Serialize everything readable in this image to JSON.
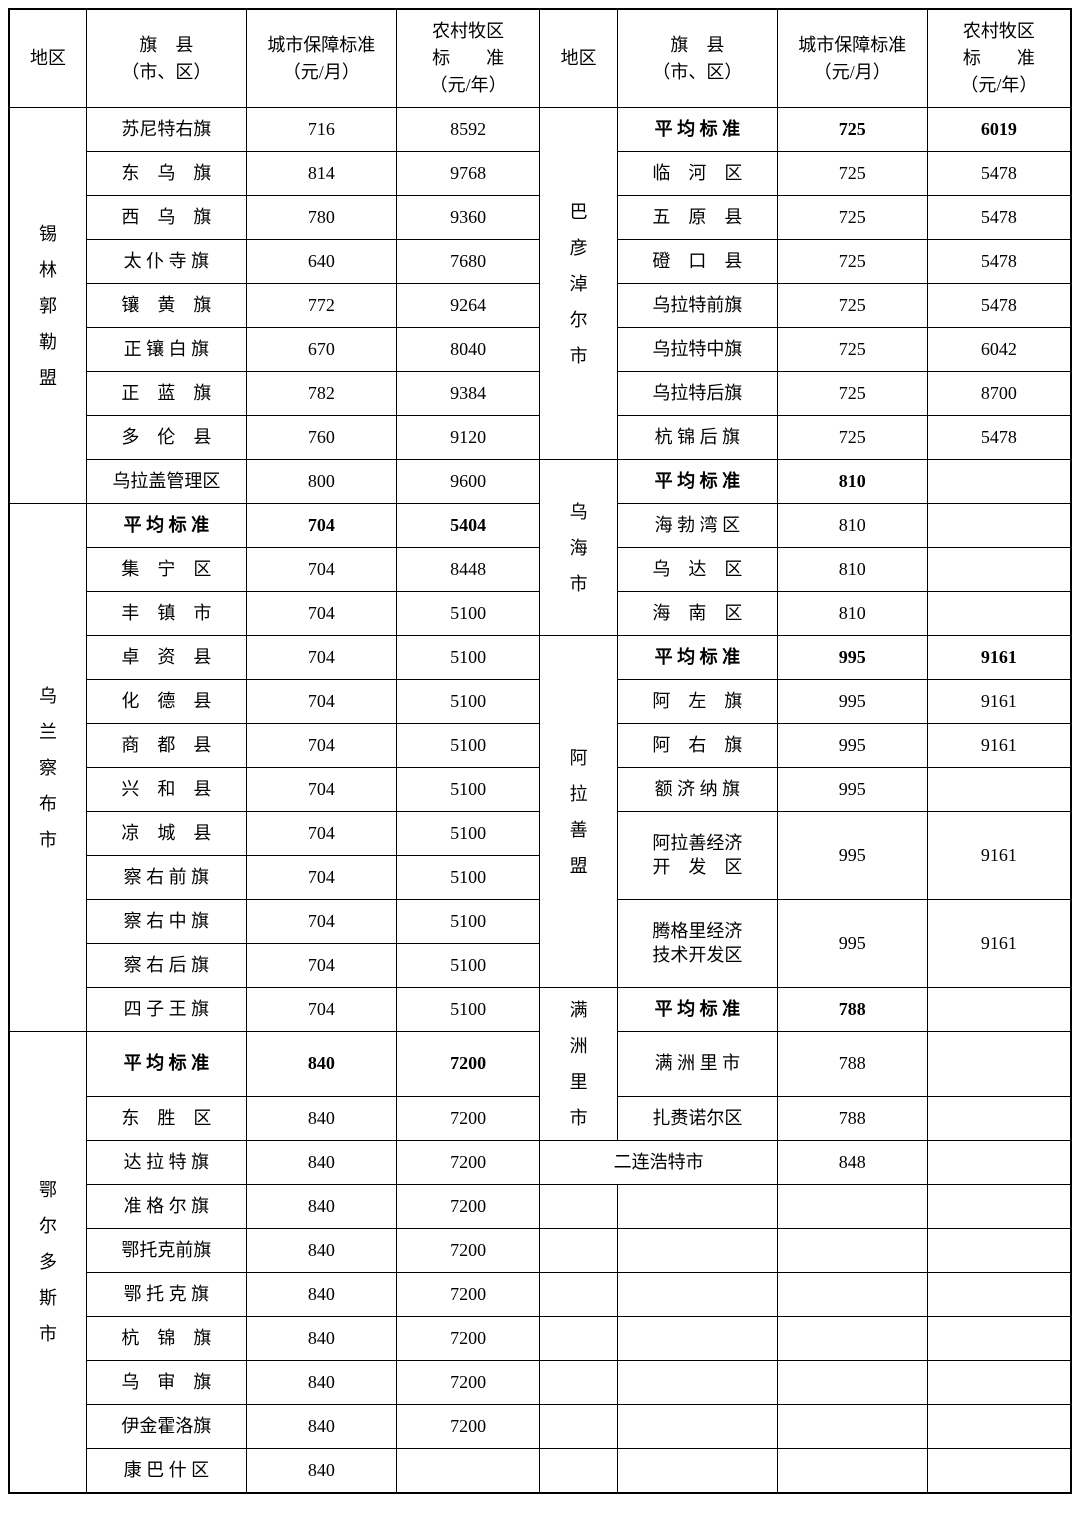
{
  "table": {
    "type": "table",
    "background_color": "#ffffff",
    "border_color": "#000000",
    "text_color": "#000000",
    "font_size_pt": 14,
    "font_family": "SimSun",
    "headers": {
      "region": "地区",
      "county_line1": "旗　县",
      "county_line2": "（市、区）",
      "urban_line1": "城市保障标准",
      "urban_line2": "（元/月）",
      "rural_line1": "农村牧区",
      "rural_line2": "标　　准",
      "rural_line3": "（元/年）"
    },
    "rows": [
      {
        "lregion": "锡<br>林<br>郭<br>勒<br>盟",
        "lrs": 9,
        "lcounty": "苏尼特右旗",
        "lurban": "716",
        "lrural": "8592",
        "rregion": "巴<br>彦<br>淖<br>尔<br>市",
        "rrs": 8,
        "rcounty": "平 均 标 准",
        "rbold": true,
        "rurban": "725",
        "rrural": "6019"
      },
      {
        "lcounty": "东　乌　旗",
        "lurban": "814",
        "lrural": "9768",
        "rcounty": "临　河　区",
        "rurban": "725",
        "rrural": "5478"
      },
      {
        "lcounty": "西　乌　旗",
        "lurban": "780",
        "lrural": "9360",
        "rcounty": "五　原　县",
        "rurban": "725",
        "rrural": "5478"
      },
      {
        "lcounty": "太 仆 寺 旗",
        "lurban": "640",
        "lrural": "7680",
        "rcounty": "磴　口　县",
        "rurban": "725",
        "rrural": "5478"
      },
      {
        "lcounty": "镶　黄　旗",
        "lurban": "772",
        "lrural": "9264",
        "rcounty": "乌拉特前旗",
        "rurban": "725",
        "rrural": "5478"
      },
      {
        "lcounty": "正 镶 白 旗",
        "lurban": "670",
        "lrural": "8040",
        "rcounty": "乌拉特中旗",
        "rurban": "725",
        "rrural": "6042"
      },
      {
        "lcounty": "正　蓝　旗",
        "lurban": "782",
        "lrural": "9384",
        "rcounty": "乌拉特后旗",
        "rurban": "725",
        "rrural": "8700"
      },
      {
        "lcounty": "多　伦　县",
        "lurban": "760",
        "lrural": "9120",
        "rcounty": "杭 锦 后 旗",
        "rurban": "725",
        "rrural": "5478"
      },
      {
        "lcounty": "乌拉盖管理区",
        "lurban": "800",
        "lrural": "9600",
        "rregion": "乌<br>海<br>市",
        "rrs": 4,
        "rcounty": "平 均 标 准",
        "rbold": true,
        "rurban": "810",
        "rrural": ""
      },
      {
        "lregion": "乌<br>兰<br>察<br>布<br>市",
        "lrs": 12,
        "lcounty": "平 均 标 准",
        "lbold": true,
        "lurban": "704",
        "lrural": "5404",
        "rcounty": "海 勃 湾 区",
        "rurban": "810",
        "rrural": ""
      },
      {
        "lcounty": "集　宁　区",
        "lurban": "704",
        "lrural": "8448",
        "rcounty": "乌　达　区",
        "rurban": "810",
        "rrural": ""
      },
      {
        "lcounty": "丰　镇　市",
        "lurban": "704",
        "lrural": "5100",
        "rcounty": "海　南　区",
        "rurban": "810",
        "rrural": ""
      },
      {
        "lcounty": "卓　资　县",
        "lurban": "704",
        "lrural": "5100",
        "rregion": "阿<br>拉<br>善<br>盟",
        "rrs": 8,
        "rcounty": "平 均 标 准",
        "rbold": true,
        "rurban": "995",
        "rrural": "9161"
      },
      {
        "lcounty": "化　德　县",
        "lurban": "704",
        "lrural": "5100",
        "rcounty": "阿　左　旗",
        "rurban": "995",
        "rrural": "9161"
      },
      {
        "lcounty": "商　都　县",
        "lurban": "704",
        "lrural": "5100",
        "rcounty": "阿　右　旗",
        "rurban": "995",
        "rrural": "9161"
      },
      {
        "lcounty": "兴　和　县",
        "lurban": "704",
        "lrural": "5100",
        "rcounty": "额 济 纳 旗",
        "rurban": "995",
        "rrural": ""
      },
      {
        "lcounty": "凉　城　县",
        "lurban": "704",
        "lrural": "5100",
        "rcounty": "阿拉善经济<br>开　发　区",
        "rurban": "995",
        "rrural": "9161",
        "rrs2": 2
      },
      {
        "lcounty": "察 右 前 旗",
        "lurban": "704",
        "lrural": "5100",
        "skipRight": true
      },
      {
        "lcounty": "察 右 中 旗",
        "lurban": "704",
        "lrural": "5100",
        "rcounty": "腾格里经济<br>技术开发区",
        "rurban": "995",
        "rrural": "9161",
        "rrs2": 2
      },
      {
        "lcounty": "察 右 后 旗",
        "lurban": "704",
        "lrural": "5100",
        "skipRight": true
      },
      {
        "lcounty": "四 子 王 旗",
        "lurban": "704",
        "lrural": "5100",
        "rregion": "满<br>洲<br>里<br>市",
        "rrs": 3,
        "rcounty": "平 均 标 准",
        "rbold": true,
        "rurban": "788",
        "rrural": ""
      },
      {
        "lregion": "鄂<br>尔<br>多<br>斯<br>市",
        "lrs": 10,
        "lcounty": "平 均 标 准",
        "lbold": true,
        "lurban": "840",
        "lrural": "7200",
        "rcounty": "满 洲 里 市",
        "rurban": "788",
        "rrural": ""
      },
      {
        "lcounty": "东　胜　区",
        "lurban": "840",
        "lrural": "7200",
        "rcounty": "扎赉诺尔区",
        "rurban": "788",
        "rrural": ""
      },
      {
        "lcounty": "达 拉 特 旗",
        "lurban": "840",
        "lrural": "7200",
        "rregionSpan": true,
        "rcounty": "二连浩特市",
        "rurban": "848",
        "rrural": ""
      },
      {
        "lcounty": "准 格 尔 旗",
        "lurban": "840",
        "lrural": "7200",
        "rcounty": "",
        "rurban": "",
        "rrural": "",
        "emptyRegion": true
      },
      {
        "lcounty": "鄂托克前旗",
        "lurban": "840",
        "lrural": "7200",
        "rcounty": "",
        "rurban": "",
        "rrural": "",
        "emptyRegion": true
      },
      {
        "lcounty": "鄂 托 克 旗",
        "lurban": "840",
        "lrural": "7200",
        "rcounty": "",
        "rurban": "",
        "rrural": "",
        "emptyRegion": true
      },
      {
        "lcounty": "杭　锦　旗",
        "lurban": "840",
        "lrural": "7200",
        "rcounty": "",
        "rurban": "",
        "rrural": "",
        "emptyRegion": true
      },
      {
        "lcounty": "乌　审　旗",
        "lurban": "840",
        "lrural": "7200",
        "rcounty": "",
        "rurban": "",
        "rrural": "",
        "emptyRegion": true
      },
      {
        "lcounty": "伊金霍洛旗",
        "lurban": "840",
        "lrural": "7200",
        "rcounty": "",
        "rurban": "",
        "rrural": "",
        "emptyRegion": true
      },
      {
        "lcounty": "康 巴 什 区",
        "lurban": "840",
        "lrural": "",
        "rcounty": "",
        "rurban": "",
        "rrural": "",
        "emptyRegion": true
      }
    ]
  }
}
